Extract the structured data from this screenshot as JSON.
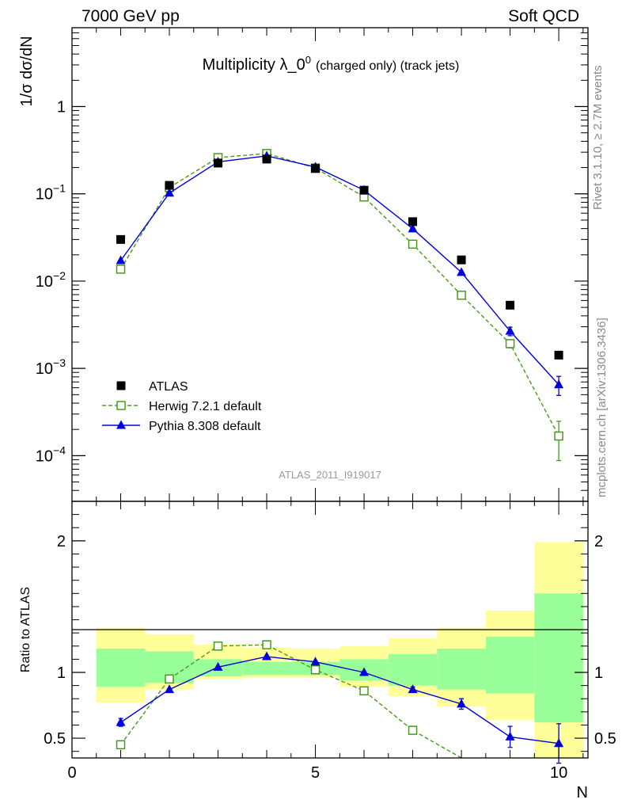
{
  "header": {
    "left": "7000 GeV pp",
    "right": "Soft QCD"
  },
  "side_labels": {
    "rivet": "Rivet 3.1.10, ≥ 2.7M events",
    "mcplots": "mcplots.cern.ch [arXiv:1306.3436]"
  },
  "chart_data": [
    {
      "type": "scatter",
      "panel": "main",
      "title_main": "Multiplicity λ_0",
      "title_sup": "0",
      "title_suffix": "(charged only) (track jets)",
      "ylabel": "1/σ dσ/dN",
      "y_scale": "log",
      "xlim": [
        0,
        10.6
      ],
      "ylim": [
        3e-05,
        8
      ],
      "x_ticks": [
        0,
        5,
        10
      ],
      "y_major_ticks": [
        0.0001,
        0.001,
        0.01,
        0.1,
        1
      ],
      "y_tick_labels": [
        {
          "base": "10",
          "exp": "−4"
        },
        {
          "base": "10",
          "exp": "−3"
        },
        {
          "base": "10",
          "exp": "−2"
        },
        {
          "base": "10",
          "exp": "−1"
        },
        {
          "base": "1",
          "exp": ""
        }
      ],
      "watermark": "ATLAS_2011_I919017",
      "legend_position": "bottom-left",
      "series": [
        {
          "name": "ATLAS",
          "style": "data",
          "color": "#000000",
          "marker": "filled-square",
          "x": [
            1,
            2,
            3,
            4,
            5,
            6,
            7,
            8,
            9,
            10
          ],
          "y": [
            0.03,
            0.125,
            0.225,
            0.25,
            0.195,
            0.11,
            0.048,
            0.0175,
            0.0053,
            0.00142
          ]
        },
        {
          "name": "Herwig 7.2.1 default",
          "style": "dashed",
          "color": "#4a9a1a",
          "marker": "open-square",
          "x": [
            1,
            2,
            3,
            4,
            5,
            6,
            7,
            8,
            9,
            10
          ],
          "y": [
            0.0137,
            0.118,
            0.26,
            0.29,
            0.198,
            0.092,
            0.0265,
            0.0069,
            0.00192,
            0.000168
          ],
          "yerr": [
            0,
            0,
            0,
            0,
            0,
            0,
            0,
            0,
            0.0002,
            8e-05
          ]
        },
        {
          "name": "Pythia 8.308 default",
          "style": "solid",
          "color": "#0000dd",
          "marker": "filled-triangle",
          "x": [
            1,
            2,
            3,
            4,
            5,
            6,
            7,
            8,
            9,
            10
          ],
          "y": [
            0.0172,
            0.102,
            0.232,
            0.272,
            0.203,
            0.11,
            0.0398,
            0.0126,
            0.00267,
            0.00065
          ],
          "yerr": [
            0,
            0,
            0,
            0,
            0,
            0,
            0,
            0,
            0.0003,
            0.00016
          ]
        }
      ]
    },
    {
      "type": "scatter",
      "panel": "ratio",
      "ylabel": "Ratio to ATLAS",
      "xlabel": "N",
      "xlim": [
        0,
        10.6
      ],
      "ylim": [
        0.35,
        2.3
      ],
      "x_ticks": [
        0,
        5,
        10
      ],
      "x_tick_labels": [
        "0",
        "5",
        "10"
      ],
      "y_ticks": [
        0.5,
        1,
        2
      ],
      "y_tick_labels": [
        "0.5",
        "1",
        "2"
      ],
      "bands": {
        "x_lo": [
          0.5,
          1.5,
          2.5,
          3.5,
          4.5,
          5.5,
          6.5,
          7.5,
          8.5,
          9.5
        ],
        "x_hi": [
          1.5,
          2.5,
          3.5,
          4.5,
          5.5,
          6.5,
          7.5,
          8.5,
          9.5,
          10.5
        ],
        "yellow_lo": [
          0.77,
          0.87,
          0.95,
          0.96,
          0.96,
          0.89,
          0.82,
          0.74,
          0.64,
          0.35
        ],
        "yellow_hi": [
          1.34,
          1.29,
          1.21,
          1.19,
          1.18,
          1.2,
          1.26,
          1.34,
          1.47,
          1.99
        ],
        "green_lo": [
          0.89,
          0.92,
          0.97,
          0.98,
          0.98,
          0.94,
          0.9,
          0.87,
          0.84,
          0.62
        ],
        "green_hi": [
          1.18,
          1.16,
          1.1,
          1.08,
          1.08,
          1.1,
          1.14,
          1.18,
          1.27,
          1.6
        ],
        "yellow_color": "#ffff99",
        "green_color": "#99ff99"
      },
      "series": [
        {
          "name": "Herwig 7.2.1 default",
          "style": "dashed",
          "color": "#4a9a1a",
          "marker": "open-square",
          "x": [
            1,
            2,
            3,
            4,
            5,
            6,
            7,
            8
          ],
          "y": [
            0.45,
            0.95,
            1.2,
            1.21,
            1.02,
            0.86,
            0.56,
            0.35
          ],
          "yerr": [
            0.03,
            0,
            0,
            0,
            0,
            0,
            0,
            0
          ]
        },
        {
          "name": "Pythia 8.308 default",
          "style": "solid",
          "color": "#0000dd",
          "marker": "filled-triangle",
          "x": [
            1,
            2,
            3,
            4,
            5,
            6,
            7,
            8,
            9,
            10
          ],
          "y": [
            0.62,
            0.87,
            1.04,
            1.12,
            1.08,
            1.0,
            0.87,
            0.76,
            0.51,
            0.46
          ],
          "yerr": [
            0.03,
            0,
            0,
            0,
            0,
            0,
            0.02,
            0.04,
            0.08,
            0.15
          ]
        }
      ]
    }
  ]
}
